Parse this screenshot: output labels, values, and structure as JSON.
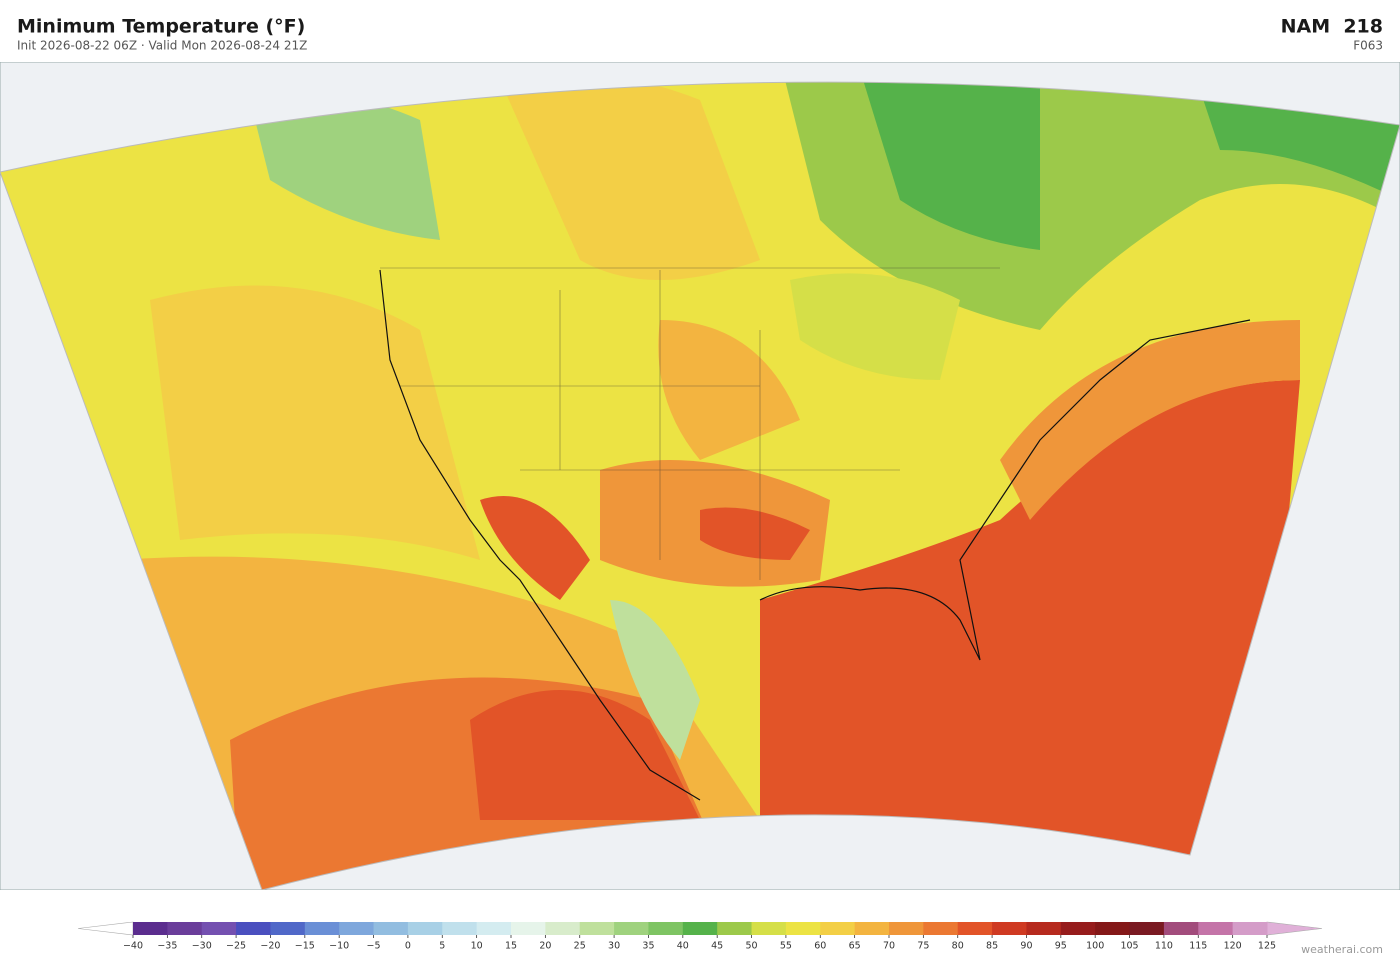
{
  "header": {
    "title": "Minimum Temperature  (°F)",
    "subtitle": "Init 2026-08-22 06Z  ·  Valid Mon 2026-08-24 21Z",
    "model": "NAM  218",
    "forecast_hour": "F063"
  },
  "colorbar": {
    "ticks": [
      {
        "value": -40,
        "label": "−40"
      },
      {
        "value": -35,
        "label": "−35"
      },
      {
        "value": -30,
        "label": "−30"
      },
      {
        "value": -25,
        "label": "−25"
      },
      {
        "value": -20,
        "label": "−20"
      },
      {
        "value": -15,
        "label": "−15"
      },
      {
        "value": -10,
        "label": "−10"
      },
      {
        "value": -5,
        "label": "−5"
      },
      0,
      5,
      10,
      15,
      20,
      25,
      30,
      35,
      40,
      45,
      50,
      55,
      60,
      65,
      70,
      75,
      80,
      85,
      90,
      95,
      100,
      105,
      110,
      115,
      120,
      125
    ],
    "colors": [
      "#5b2d8e",
      "#6a3d9a",
      "#7450b0",
      "#4a4fbf",
      "#5068c8",
      "#6a8fd6",
      "#7ea7dc",
      "#92bde0",
      "#a8d0e6",
      "#c0e0ec",
      "#d4ecf0",
      "#e6f4ea",
      "#d8eccb",
      "#bfe09c",
      "#9fd27e",
      "#7ec463",
      "#55b24a",
      "#9cc94a",
      "#d5df48",
      "#ece344",
      "#f3cf46",
      "#f3b440",
      "#ef963a",
      "#eb7832",
      "#e25428",
      "#cf3a22",
      "#b62a1e",
      "#961c1c",
      "#841818",
      "#7a1a22",
      "#a24c7c",
      "#c474a8",
      "#d49cc8"
    ],
    "under_color": "#ffffff",
    "over_color": "#e0b0d8"
  },
  "watermark": "weatherai.com"
}
